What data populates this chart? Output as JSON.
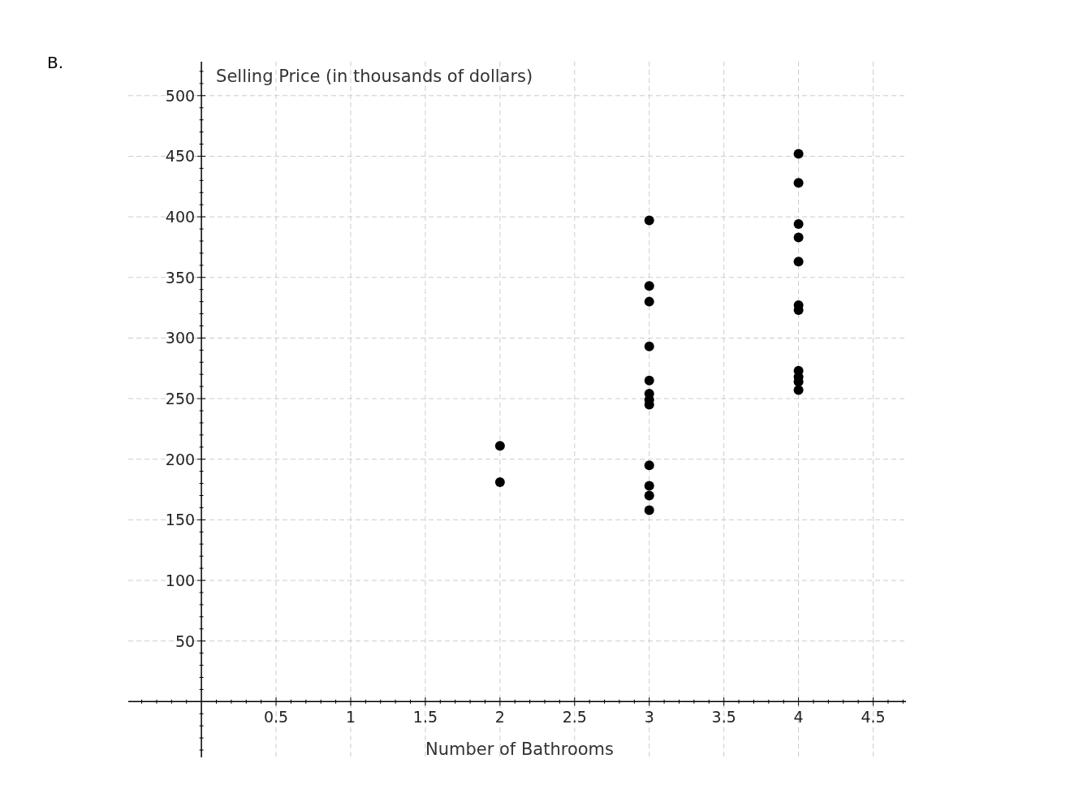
{
  "chart_data": {
    "type": "scatter",
    "title": "B.",
    "xlabel": "Number of Bathrooms",
    "ylabel": "Selling Price (in thousands of dollars)",
    "x": [
      2,
      2,
      3,
      3,
      3,
      3,
      3,
      3,
      3,
      3,
      3,
      3,
      3,
      3,
      4,
      4,
      4,
      4,
      4,
      4,
      4,
      4,
      4,
      4,
      4
    ],
    "values": [
      211,
      181,
      397,
      343,
      330,
      293,
      265,
      254,
      249,
      245,
      195,
      178,
      170,
      158,
      452,
      428,
      394,
      383,
      363,
      327,
      323,
      273,
      268,
      264,
      257
    ],
    "color": "#000000",
    "marker": "circle",
    "grid": true,
    "xlim": [
      -0.49,
      4.72
    ],
    "ylim": [
      -46,
      528
    ],
    "xticks": [
      {
        "value": -0.4,
        "label": null
      },
      {
        "value": -0.3,
        "label": null
      },
      {
        "value": -0.2,
        "label": null
      },
      {
        "value": -0.1,
        "label": null
      },
      {
        "value": 0.1,
        "label": null
      },
      {
        "value": 0.2,
        "label": null
      },
      {
        "value": 0.3,
        "label": null
      },
      {
        "value": 0.4,
        "label": null
      },
      0.5,
      {
        "value": 0.6,
        "label": null
      },
      {
        "value": 0.7,
        "label": null
      },
      {
        "value": 0.8,
        "label": null
      },
      {
        "value": 0.9,
        "label": null
      },
      1,
      {
        "value": 1.1,
        "label": null
      },
      {
        "value": 1.2,
        "label": null
      },
      {
        "value": 1.3,
        "label": null
      },
      {
        "value": 1.4,
        "label": null
      },
      1.5,
      {
        "value": 1.6,
        "label": null
      },
      {
        "value": 1.7,
        "label": null
      },
      {
        "value": 1.8,
        "label": null
      },
      {
        "value": 1.9,
        "label": null
      },
      2,
      {
        "value": 2.1,
        "label": null
      },
      {
        "value": 2.2,
        "label": null
      },
      {
        "value": 2.3,
        "label": null
      },
      {
        "value": 2.4,
        "label": null
      },
      2.5,
      {
        "value": 2.6,
        "label": null
      },
      {
        "value": 2.7,
        "label": null
      },
      {
        "value": 2.8,
        "label": null
      },
      {
        "value": 2.9,
        "label": null
      },
      3,
      {
        "value": 3.1,
        "label": null
      },
      {
        "value": 3.2,
        "label": null
      },
      {
        "value": 3.3,
        "label": null
      },
      {
        "value": 3.4,
        "label": null
      },
      3.5,
      {
        "value": 3.6,
        "label": null
      },
      {
        "value": 3.7,
        "label": null
      },
      {
        "value": 3.8,
        "label": null
      },
      {
        "value": 3.9,
        "label": null
      },
      4,
      {
        "value": 4.1,
        "label": null
      },
      {
        "value": 4.2,
        "label": null
      },
      {
        "value": 4.3,
        "label": null
      },
      {
        "value": 4.4,
        "label": null
      },
      4.5,
      {
        "value": 4.6,
        "label": null
      },
      {
        "value": 4.7,
        "label": null
      }
    ],
    "yticks": [
      {
        "value": -40,
        "label": null
      },
      {
        "value": -30,
        "label": null
      },
      {
        "value": -20,
        "label": null
      },
      {
        "value": -10,
        "label": null
      },
      {
        "value": 10,
        "label": null
      },
      {
        "value": 20,
        "label": null
      },
      {
        "value": 30,
        "label": null
      },
      {
        "value": 40,
        "label": null
      },
      50,
      {
        "value": 60,
        "label": null
      },
      {
        "value": 70,
        "label": null
      },
      {
        "value": 80,
        "label": null
      },
      {
        "value": 90,
        "label": null
      },
      100,
      {
        "value": 110,
        "label": null
      },
      {
        "value": 120,
        "label": null
      },
      {
        "value": 130,
        "label": null
      },
      {
        "value": 140,
        "label": null
      },
      150,
      {
        "value": 160,
        "label": null
      },
      {
        "value": 170,
        "label": null
      },
      {
        "value": 180,
        "label": null
      },
      {
        "value": 190,
        "label": null
      },
      200,
      {
        "value": 210,
        "label": null
      },
      {
        "value": 220,
        "label": null
      },
      {
        "value": 230,
        "label": null
      },
      {
        "value": 240,
        "label": null
      },
      250,
      {
        "value": 260,
        "label": null
      },
      {
        "value": 270,
        "label": null
      },
      {
        "value": 280,
        "label": null
      },
      {
        "value": 290,
        "label": null
      },
      300,
      {
        "value": 310,
        "label": null
      },
      {
        "value": 320,
        "label": null
      },
      {
        "value": 330,
        "label": null
      },
      {
        "value": 340,
        "label": null
      },
      350,
      {
        "value": 360,
        "label": null
      },
      {
        "value": 370,
        "label": null
      },
      {
        "value": 380,
        "label": null
      },
      {
        "value": 390,
        "label": null
      },
      400,
      {
        "value": 410,
        "label": null
      },
      {
        "value": 420,
        "label": null
      },
      {
        "value": 430,
        "label": null
      },
      {
        "value": 440,
        "label": null
      },
      450,
      {
        "value": 460,
        "label": null
      },
      {
        "value": 470,
        "label": null
      },
      {
        "value": 480,
        "label": null
      },
      {
        "value": 490,
        "label": null
      },
      500,
      {
        "value": 510,
        "label": null
      },
      {
        "value": 520,
        "label": null
      }
    ]
  }
}
